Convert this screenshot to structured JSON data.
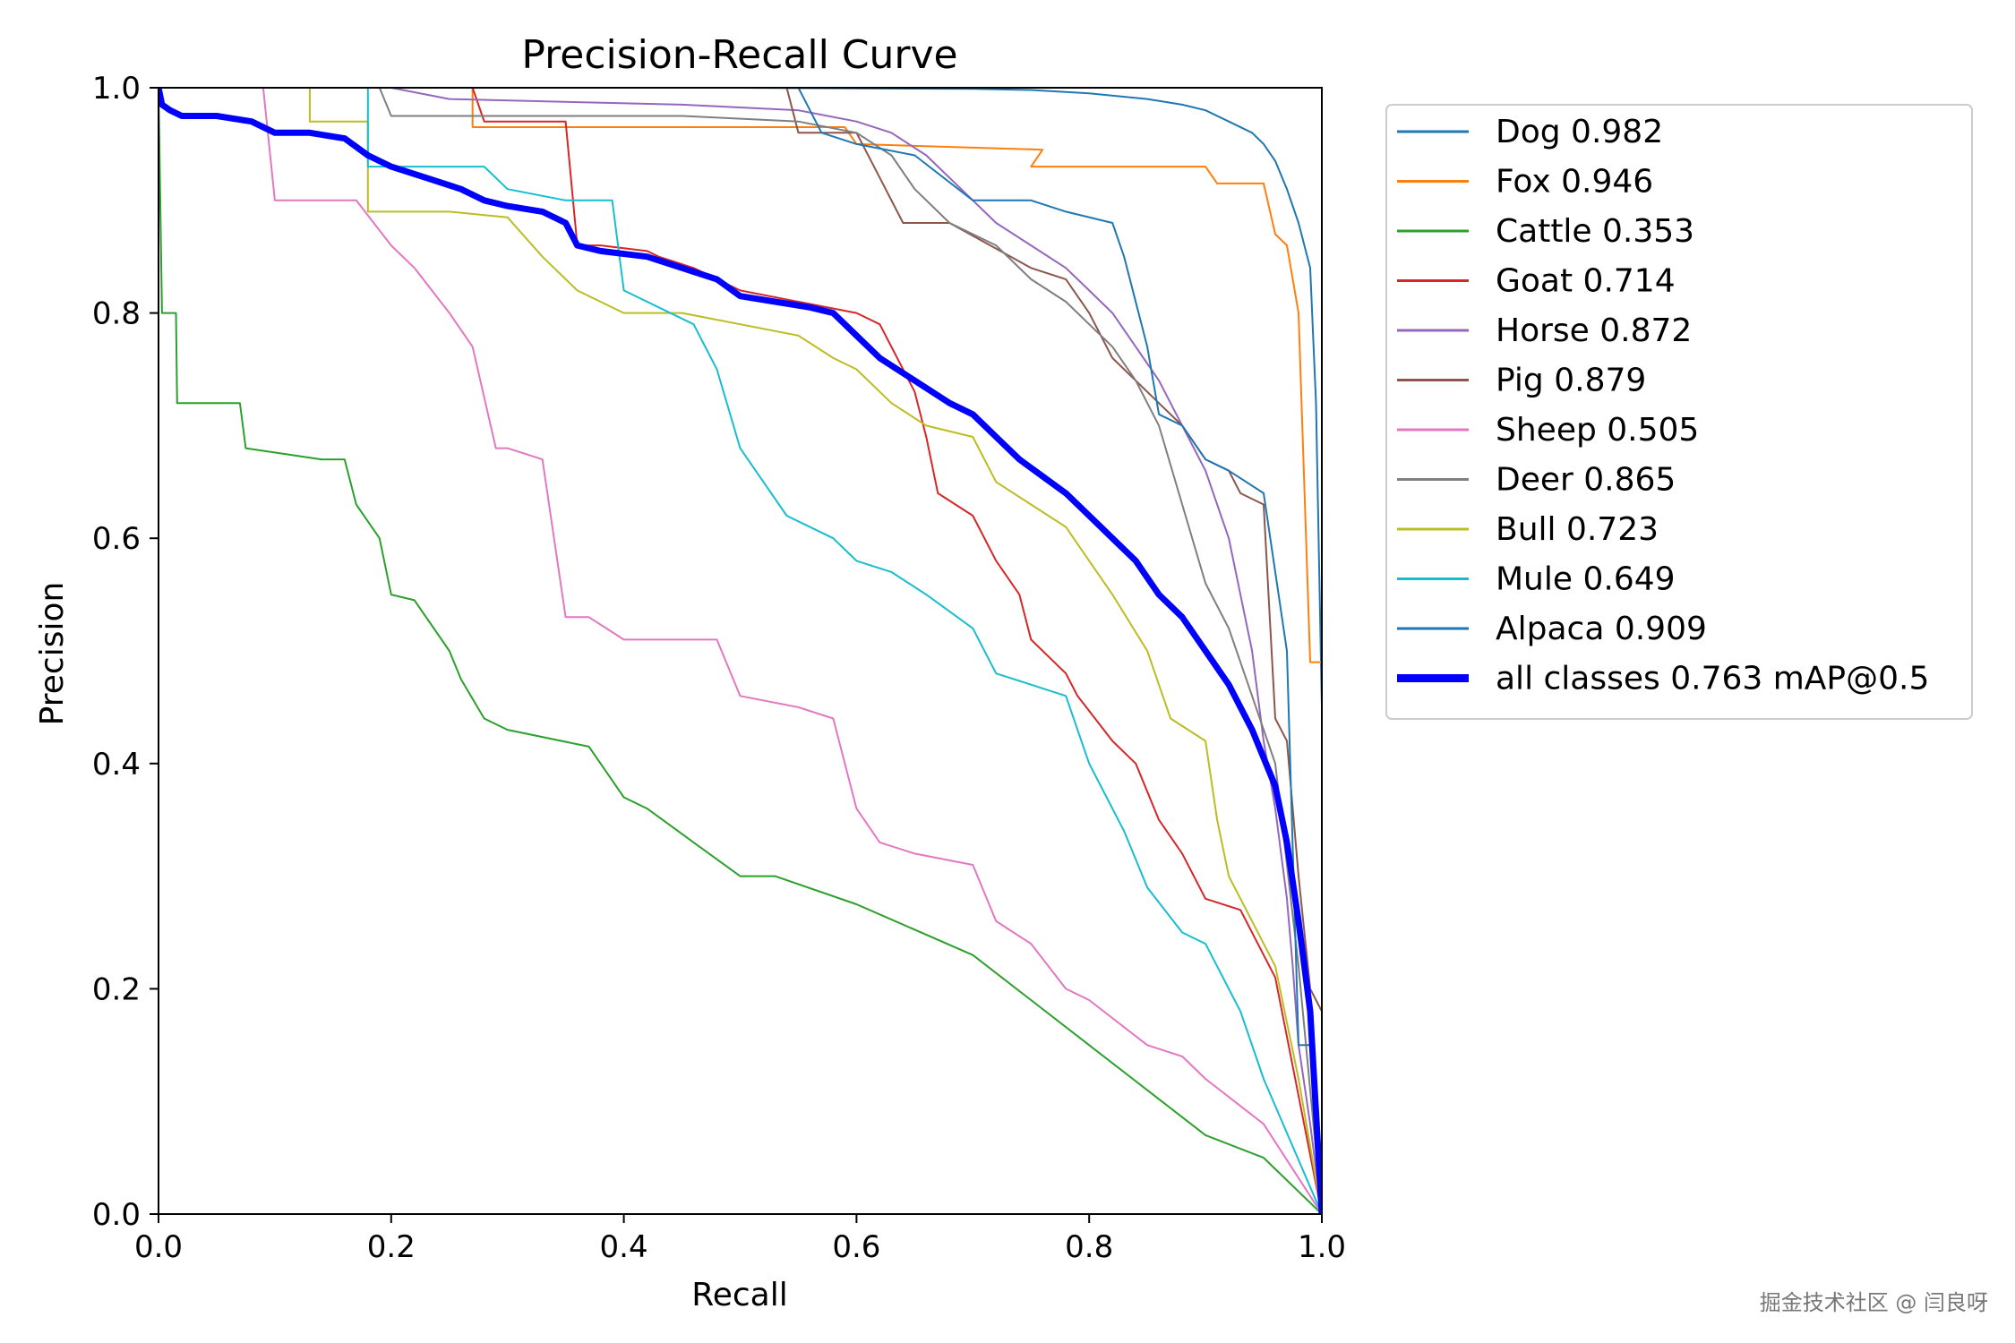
{
  "chart_data": {
    "type": "line",
    "title": "Precision-Recall Curve",
    "xlabel": "Recall",
    "ylabel": "Precision",
    "xlim": [
      0,
      1
    ],
    "ylim": [
      0,
      1
    ],
    "xticks": [
      "0.0",
      "0.2",
      "0.4",
      "0.6",
      "0.8",
      "1.0"
    ],
    "yticks": [
      "0.0",
      "0.2",
      "0.4",
      "0.6",
      "0.8",
      "1.0"
    ],
    "grid": false,
    "legend_position": "outside-right",
    "series": [
      {
        "name": "Dog",
        "label": "Dog 0.982",
        "color": "#1f77b4",
        "width": 2,
        "x": [
          0,
          0.5,
          0.7,
          0.75,
          0.8,
          0.85,
          0.88,
          0.9,
          0.92,
          0.94,
          0.95,
          0.96,
          0.97,
          0.98,
          0.99,
          0.995,
          1.0,
          1.0
        ],
        "y": [
          1,
          1,
          0.999,
          0.998,
          0.995,
          0.99,
          0.985,
          0.98,
          0.97,
          0.96,
          0.95,
          0.935,
          0.91,
          0.88,
          0.84,
          0.72,
          0.45,
          0
        ]
      },
      {
        "name": "Fox",
        "label": "Fox 0.946",
        "color": "#ff7f0e",
        "width": 2,
        "x": [
          0,
          0.27,
          0.27,
          0.59,
          0.6,
          0.76,
          0.75,
          0.9,
          0.91,
          0.95,
          0.96,
          0.97,
          0.98,
          0.99,
          1.0,
          1.0
        ],
        "y": [
          1,
          1,
          0.965,
          0.965,
          0.95,
          0.945,
          0.93,
          0.93,
          0.915,
          0.915,
          0.87,
          0.86,
          0.8,
          0.49,
          0.49,
          0
        ]
      },
      {
        "name": "Cattle",
        "label": "Cattle 0.353",
        "color": "#2ca02c",
        "width": 2,
        "x": [
          0,
          0.003,
          0.004,
          0.015,
          0.016,
          0.07,
          0.075,
          0.14,
          0.16,
          0.17,
          0.19,
          0.2,
          0.22,
          0.25,
          0.26,
          0.28,
          0.3,
          0.37,
          0.38,
          0.4,
          0.42,
          0.46,
          0.5,
          0.53,
          0.6,
          0.7,
          0.75,
          0.8,
          0.85,
          0.9,
          0.95,
          1.0
        ],
        "y": [
          1,
          0.8,
          0.8,
          0.8,
          0.72,
          0.72,
          0.68,
          0.67,
          0.67,
          0.63,
          0.6,
          0.55,
          0.545,
          0.5,
          0.475,
          0.44,
          0.43,
          0.415,
          0.4,
          0.37,
          0.36,
          0.33,
          0.3,
          0.3,
          0.275,
          0.23,
          0.19,
          0.15,
          0.11,
          0.07,
          0.05,
          0
        ]
      },
      {
        "name": "Goat",
        "label": "Goat 0.714",
        "color": "#d62728",
        "width": 2,
        "x": [
          0,
          0.27,
          0.28,
          0.35,
          0.36,
          0.38,
          0.42,
          0.43,
          0.46,
          0.5,
          0.55,
          0.6,
          0.62,
          0.65,
          0.66,
          0.67,
          0.7,
          0.72,
          0.74,
          0.75,
          0.78,
          0.79,
          0.82,
          0.84,
          0.86,
          0.88,
          0.9,
          0.93,
          0.96,
          1.0
        ],
        "y": [
          1,
          1,
          0.97,
          0.97,
          0.86,
          0.86,
          0.855,
          0.85,
          0.84,
          0.82,
          0.81,
          0.8,
          0.79,
          0.73,
          0.69,
          0.64,
          0.62,
          0.58,
          0.55,
          0.51,
          0.48,
          0.46,
          0.42,
          0.4,
          0.35,
          0.32,
          0.28,
          0.27,
          0.21,
          0
        ]
      },
      {
        "name": "Horse",
        "label": "Horse 0.872",
        "color": "#9467bd",
        "width": 2,
        "x": [
          0,
          0.2,
          0.25,
          0.45,
          0.55,
          0.6,
          0.63,
          0.66,
          0.69,
          0.72,
          0.75,
          0.78,
          0.8,
          0.82,
          0.84,
          0.86,
          0.88,
          0.9,
          0.92,
          0.93,
          0.94,
          0.95,
          0.96,
          0.97,
          0.975,
          0.98,
          0.99,
          1.0
        ],
        "y": [
          1,
          1,
          0.99,
          0.985,
          0.98,
          0.97,
          0.96,
          0.94,
          0.91,
          0.88,
          0.86,
          0.84,
          0.82,
          0.8,
          0.77,
          0.74,
          0.7,
          0.66,
          0.6,
          0.55,
          0.5,
          0.42,
          0.36,
          0.28,
          0.22,
          0.15,
          0.08,
          0
        ]
      },
      {
        "name": "Pig",
        "label": "Pig 0.879",
        "color": "#8c564b",
        "width": 2,
        "x": [
          0,
          0.54,
          0.55,
          0.6,
          0.62,
          0.64,
          0.68,
          0.75,
          0.78,
          0.8,
          0.82,
          0.85,
          0.88,
          0.9,
          0.92,
          0.93,
          0.95,
          0.96,
          0.97,
          0.98,
          0.99,
          1.0,
          1.0
        ],
        "y": [
          1,
          1,
          0.96,
          0.96,
          0.92,
          0.88,
          0.88,
          0.84,
          0.83,
          0.8,
          0.76,
          0.73,
          0.7,
          0.67,
          0.66,
          0.64,
          0.63,
          0.44,
          0.42,
          0.3,
          0.2,
          0.18,
          0
        ]
      },
      {
        "name": "Sheep",
        "label": "Sheep 0.505",
        "color": "#e377c2",
        "width": 2,
        "x": [
          0,
          0.09,
          0.1,
          0.17,
          0.2,
          0.22,
          0.25,
          0.27,
          0.29,
          0.3,
          0.33,
          0.35,
          0.37,
          0.4,
          0.48,
          0.5,
          0.55,
          0.58,
          0.6,
          0.62,
          0.65,
          0.7,
          0.72,
          0.75,
          0.78,
          0.8,
          0.85,
          0.88,
          0.9,
          0.95,
          1.0
        ],
        "y": [
          1,
          1,
          0.9,
          0.9,
          0.86,
          0.84,
          0.8,
          0.77,
          0.68,
          0.68,
          0.67,
          0.53,
          0.53,
          0.51,
          0.51,
          0.46,
          0.45,
          0.44,
          0.36,
          0.33,
          0.32,
          0.31,
          0.26,
          0.24,
          0.2,
          0.19,
          0.15,
          0.14,
          0.12,
          0.08,
          0
        ]
      },
      {
        "name": "Deer",
        "label": "Deer 0.865",
        "color": "#7f7f7f",
        "width": 2,
        "x": [
          0,
          0.19,
          0.2,
          0.45,
          0.55,
          0.6,
          0.63,
          0.65,
          0.68,
          0.72,
          0.75,
          0.78,
          0.8,
          0.82,
          0.84,
          0.86,
          0.88,
          0.9,
          0.92,
          0.94,
          0.96,
          0.98,
          1.0
        ],
        "y": [
          1,
          1,
          0.975,
          0.975,
          0.97,
          0.96,
          0.94,
          0.91,
          0.88,
          0.86,
          0.83,
          0.81,
          0.79,
          0.77,
          0.74,
          0.7,
          0.63,
          0.56,
          0.52,
          0.46,
          0.4,
          0.22,
          0
        ]
      },
      {
        "name": "Bull",
        "label": "Bull 0.723",
        "color": "#bcbd22",
        "width": 2,
        "x": [
          0,
          0.13,
          0.13,
          0.18,
          0.18,
          0.25,
          0.3,
          0.33,
          0.36,
          0.4,
          0.45,
          0.5,
          0.55,
          0.58,
          0.6,
          0.63,
          0.66,
          0.7,
          0.72,
          0.75,
          0.78,
          0.8,
          0.82,
          0.85,
          0.87,
          0.9,
          0.91,
          0.92,
          0.94,
          0.96,
          0.98,
          1.0
        ],
        "y": [
          1,
          1,
          0.97,
          0.97,
          0.89,
          0.89,
          0.885,
          0.85,
          0.82,
          0.8,
          0.8,
          0.79,
          0.78,
          0.76,
          0.75,
          0.72,
          0.7,
          0.69,
          0.65,
          0.63,
          0.61,
          0.58,
          0.55,
          0.5,
          0.44,
          0.42,
          0.35,
          0.3,
          0.26,
          0.22,
          0.12,
          0
        ]
      },
      {
        "name": "Mule",
        "label": "Mule 0.649",
        "color": "#17becf",
        "width": 2,
        "x": [
          0,
          0.18,
          0.18,
          0.28,
          0.3,
          0.35,
          0.39,
          0.4,
          0.46,
          0.48,
          0.5,
          0.52,
          0.54,
          0.58,
          0.6,
          0.63,
          0.66,
          0.7,
          0.72,
          0.75,
          0.78,
          0.8,
          0.83,
          0.85,
          0.88,
          0.9,
          0.92,
          0.93,
          0.95,
          1.0
        ],
        "y": [
          1,
          1,
          0.93,
          0.93,
          0.91,
          0.9,
          0.9,
          0.82,
          0.79,
          0.75,
          0.68,
          0.65,
          0.62,
          0.6,
          0.58,
          0.57,
          0.55,
          0.52,
          0.48,
          0.47,
          0.46,
          0.4,
          0.34,
          0.29,
          0.25,
          0.24,
          0.2,
          0.18,
          0.12,
          0
        ]
      },
      {
        "name": "Alpaca",
        "label": "Alpaca 0.909",
        "color": "#1f77b4",
        "width": 2,
        "x": [
          0,
          0.55,
          0.57,
          0.6,
          0.65,
          0.7,
          0.75,
          0.78,
          0.82,
          0.83,
          0.85,
          0.86,
          0.88,
          0.9,
          0.92,
          0.95,
          0.97,
          0.98,
          0.99,
          1.0
        ],
        "y": [
          1,
          1,
          0.96,
          0.95,
          0.94,
          0.9,
          0.9,
          0.89,
          0.88,
          0.85,
          0.77,
          0.71,
          0.7,
          0.67,
          0.66,
          0.64,
          0.5,
          0.15,
          0.15,
          0
        ]
      },
      {
        "name": "all classes",
        "label": "all classes 0.763 mAP@0.5",
        "color": "#0000ff",
        "width": 7,
        "x": [
          0,
          0.003,
          0.01,
          0.02,
          0.05,
          0.08,
          0.1,
          0.13,
          0.16,
          0.18,
          0.2,
          0.23,
          0.26,
          0.28,
          0.3,
          0.33,
          0.35,
          0.36,
          0.38,
          0.42,
          0.45,
          0.48,
          0.5,
          0.53,
          0.56,
          0.58,
          0.6,
          0.62,
          0.65,
          0.68,
          0.7,
          0.72,
          0.74,
          0.76,
          0.78,
          0.8,
          0.82,
          0.84,
          0.86,
          0.88,
          0.9,
          0.92,
          0.94,
          0.96,
          0.97,
          0.98,
          0.99,
          1.0
        ],
        "y": [
          1,
          0.985,
          0.98,
          0.975,
          0.975,
          0.97,
          0.96,
          0.96,
          0.955,
          0.94,
          0.93,
          0.92,
          0.91,
          0.9,
          0.895,
          0.89,
          0.88,
          0.86,
          0.855,
          0.85,
          0.84,
          0.83,
          0.815,
          0.81,
          0.805,
          0.8,
          0.78,
          0.76,
          0.74,
          0.72,
          0.71,
          0.69,
          0.67,
          0.655,
          0.64,
          0.62,
          0.6,
          0.58,
          0.55,
          0.53,
          0.5,
          0.47,
          0.43,
          0.38,
          0.33,
          0.26,
          0.18,
          0
        ]
      }
    ]
  },
  "watermark": "掘金技术社区 @ 闫良呀"
}
